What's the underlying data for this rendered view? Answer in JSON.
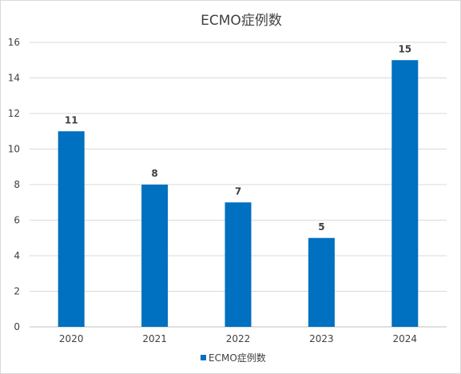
{
  "chart_data": {
    "type": "bar",
    "title": "ECMO症例数",
    "categories": [
      "2020",
      "2021",
      "2022",
      "2023",
      "2024"
    ],
    "series": [
      {
        "name": "ECMO症例数",
        "values": [
          11,
          8,
          7,
          5,
          15
        ],
        "color": "#0070c0"
      }
    ],
    "data_labels": [
      "11",
      "8",
      "7",
      "5",
      "15"
    ],
    "y_ticks": [
      "0",
      "2",
      "4",
      "6",
      "8",
      "10",
      "12",
      "14",
      "16"
    ],
    "ylim": [
      0,
      16
    ],
    "grid": true,
    "legend_position": "bottom",
    "xlabel": "",
    "ylabel": ""
  }
}
